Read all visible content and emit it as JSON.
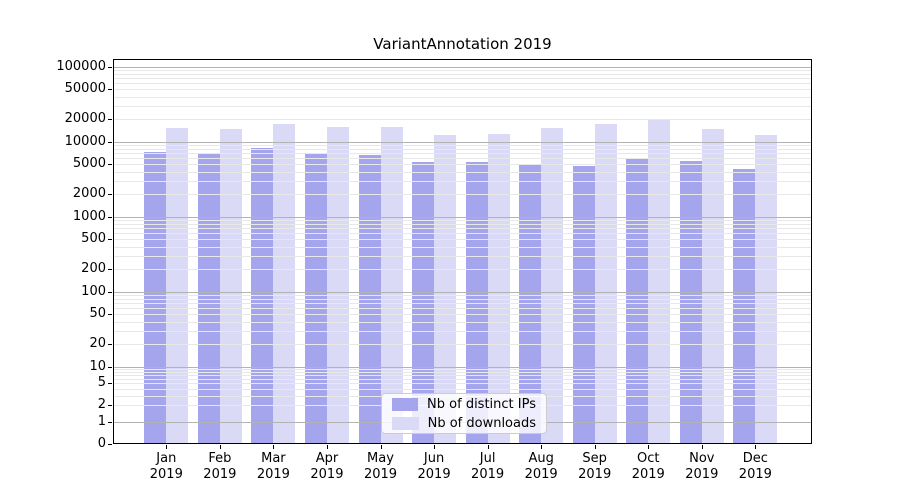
{
  "chart_data": {
    "type": "bar",
    "title": "VariantAnnotation 2019",
    "categories": [
      "Jan 2019",
      "Feb 2019",
      "Mar 2019",
      "Apr 2019",
      "May 2019",
      "Jun 2019",
      "Jul 2019",
      "Aug 2019",
      "Sep 2019",
      "Oct 2019",
      "Nov 2019",
      "Dec 2019"
    ],
    "series": [
      {
        "name": "Nb of distinct IPs",
        "color": "#a5a5ee",
        "values": [
          7400,
          6800,
          8300,
          7100,
          6700,
          5300,
          5400,
          4900,
          4700,
          5900,
          5600,
          4300
        ]
      },
      {
        "name": "Nb of downloads",
        "color": "#dadaf7",
        "values": [
          15300,
          14800,
          17100,
          15500,
          15900,
          12300,
          12700,
          15300,
          17100,
          19500,
          14700,
          12400
        ]
      }
    ],
    "yscale": "symlog",
    "ylim": [
      0,
      100000
    ],
    "yticks": [
      {
        "value": 0,
        "label": "0"
      },
      {
        "value": 1,
        "label": "1"
      },
      {
        "value": 2,
        "label": "2"
      },
      {
        "value": 5,
        "label": "5"
      },
      {
        "value": 10,
        "label": "10"
      },
      {
        "value": 20,
        "label": "20"
      },
      {
        "value": 50,
        "label": "50"
      },
      {
        "value": 100,
        "label": "100"
      },
      {
        "value": 200,
        "label": "200"
      },
      {
        "value": 500,
        "label": "500"
      },
      {
        "value": 1000,
        "label": "1000"
      },
      {
        "value": 2000,
        "label": "2000"
      },
      {
        "value": 5000,
        "label": "5000"
      },
      {
        "value": 10000,
        "label": "10000"
      },
      {
        "value": 20000,
        "label": "20000"
      },
      {
        "value": 50000,
        "label": "50000"
      },
      {
        "value": 100000,
        "label": "100000"
      }
    ],
    "grid": {
      "on": true,
      "which": "both",
      "major_color": "#b3b3b3",
      "minor_color": "#e8e8e8"
    },
    "legend_position": "lower-center",
    "axis_color": "#000000",
    "background_color": "#ffffff"
  }
}
